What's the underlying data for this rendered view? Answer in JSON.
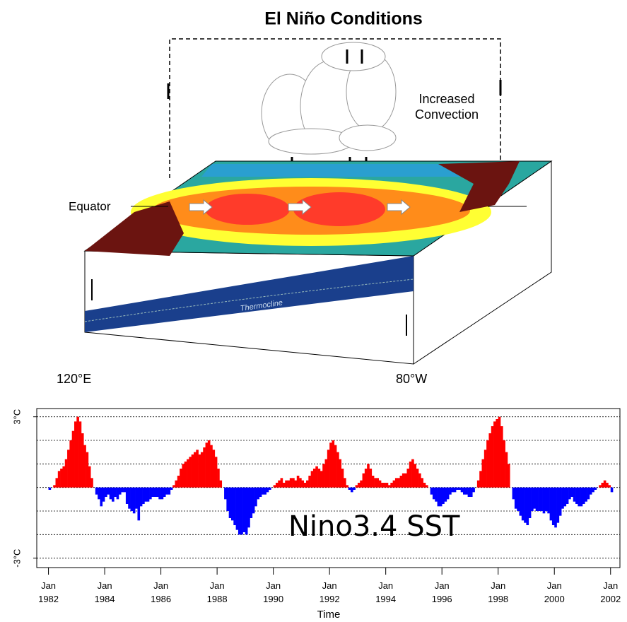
{
  "diagram": {
    "title": "El Niño Conditions",
    "convection": [
      "Increased",
      "Convection"
    ],
    "equator": "Equator",
    "thermocline": "Thermocline",
    "west": "120°E",
    "east": "80°W"
  },
  "chart_data": {
    "type": "bar",
    "title": "Nino3.4 SST",
    "x_label": "Time",
    "positive_color": "#ff0000",
    "negative_color": "#0000ff",
    "xlim": [
      "1981-08",
      "2002-05"
    ],
    "xticks": [
      {
        "value": "1982-01",
        "label": "Jan 1982"
      },
      {
        "value": "1984-01",
        "label": "Jan 1984"
      },
      {
        "value": "1986-01",
        "label": "Jan 1986"
      },
      {
        "value": "1988-01",
        "label": "Jan 1988"
      },
      {
        "value": "1990-01",
        "label": "Jan 1990"
      },
      {
        "value": "1992-01",
        "label": "Jan 1992"
      },
      {
        "value": "1994-01",
        "label": "Jan 1994"
      },
      {
        "value": "1996-01",
        "label": "Jan 1996"
      },
      {
        "value": "1998-01",
        "label": "Jan 1998"
      },
      {
        "value": "2000-01",
        "label": "Jan 2000"
      },
      {
        "value": "2002-01",
        "label": "Jan 2002"
      }
    ],
    "ylim": [
      -3.4,
      3.35
    ],
    "yticks": [
      {
        "value": 3,
        "label": "3°C"
      },
      {
        "value": -3,
        "label": "-3°C"
      }
    ],
    "ygrid": [
      -3,
      -2,
      -1,
      0,
      1,
      2,
      3
    ],
    "x": [
      "1982-01",
      "1982-02",
      "1982-03",
      "1982-04",
      "1982-05",
      "1982-06",
      "1982-07",
      "1982-08",
      "1982-09",
      "1982-10",
      "1982-11",
      "1982-12",
      "1983-01",
      "1983-02",
      "1983-03",
      "1983-04",
      "1983-05",
      "1983-06",
      "1983-07",
      "1983-08",
      "1983-09",
      "1983-10",
      "1983-11",
      "1983-12",
      "1984-01",
      "1984-02",
      "1984-03",
      "1984-04",
      "1984-05",
      "1984-06",
      "1984-07",
      "1984-08",
      "1984-09",
      "1984-10",
      "1984-11",
      "1984-12",
      "1985-01",
      "1985-02",
      "1985-03",
      "1985-04",
      "1985-05",
      "1985-06",
      "1985-07",
      "1985-08",
      "1985-09",
      "1985-10",
      "1985-11",
      "1985-12",
      "1986-01",
      "1986-02",
      "1986-03",
      "1986-04",
      "1986-05",
      "1986-06",
      "1986-07",
      "1986-08",
      "1986-09",
      "1986-10",
      "1986-11",
      "1986-12",
      "1987-01",
      "1987-02",
      "1987-03",
      "1987-04",
      "1987-05",
      "1987-06",
      "1987-07",
      "1987-08",
      "1987-09",
      "1987-10",
      "1987-11",
      "1987-12",
      "1988-01",
      "1988-02",
      "1988-03",
      "1988-04",
      "1988-05",
      "1988-06",
      "1988-07",
      "1988-08",
      "1988-09",
      "1988-10",
      "1988-11",
      "1988-12",
      "1989-01",
      "1989-02",
      "1989-03",
      "1989-04",
      "1989-05",
      "1989-06",
      "1989-07",
      "1989-08",
      "1989-09",
      "1989-10",
      "1989-11",
      "1989-12",
      "1990-01",
      "1990-02",
      "1990-03",
      "1990-04",
      "1990-05",
      "1990-06",
      "1990-07",
      "1990-08",
      "1990-09",
      "1990-10",
      "1990-11",
      "1990-12",
      "1991-01",
      "1991-02",
      "1991-03",
      "1991-04",
      "1991-05",
      "1991-06",
      "1991-07",
      "1991-08",
      "1991-09",
      "1991-10",
      "1991-11",
      "1991-12",
      "1992-01",
      "1992-02",
      "1992-03",
      "1992-04",
      "1992-05",
      "1992-06",
      "1992-07",
      "1992-08",
      "1992-09",
      "1992-10",
      "1992-11",
      "1992-12",
      "1993-01",
      "1993-02",
      "1993-03",
      "1993-04",
      "1993-05",
      "1993-06",
      "1993-07",
      "1993-08",
      "1993-09",
      "1993-10",
      "1993-11",
      "1993-12",
      "1994-01",
      "1994-02",
      "1994-03",
      "1994-04",
      "1994-05",
      "1994-06",
      "1994-07",
      "1994-08",
      "1994-09",
      "1994-10",
      "1994-11",
      "1994-12",
      "1995-01",
      "1995-02",
      "1995-03",
      "1995-04",
      "1995-05",
      "1995-06",
      "1995-07",
      "1995-08",
      "1995-09",
      "1995-10",
      "1995-11",
      "1995-12",
      "1996-01",
      "1996-02",
      "1996-03",
      "1996-04",
      "1996-05",
      "1996-06",
      "1996-07",
      "1996-08",
      "1996-09",
      "1996-10",
      "1996-11",
      "1996-12",
      "1997-01",
      "1997-02",
      "1997-03",
      "1997-04",
      "1997-05",
      "1997-06",
      "1997-07",
      "1997-08",
      "1997-09",
      "1997-10",
      "1997-11",
      "1997-12",
      "1998-01",
      "1998-02",
      "1998-03",
      "1998-04",
      "1998-05",
      "1998-06",
      "1998-07",
      "1998-08",
      "1998-09",
      "1998-10",
      "1998-11",
      "1998-12",
      "1999-01",
      "1999-02",
      "1999-03",
      "1999-04",
      "1999-05",
      "1999-06",
      "1999-07",
      "1999-08",
      "1999-09",
      "1999-10",
      "1999-11",
      "1999-12",
      "2000-01",
      "2000-02",
      "2000-03",
      "2000-04",
      "2000-05",
      "2000-06",
      "2000-07",
      "2000-08",
      "2000-09",
      "2000-10",
      "2000-11",
      "2000-12",
      "2001-01",
      "2001-02",
      "2001-03",
      "2001-04",
      "2001-05",
      "2001-06",
      "2001-07",
      "2001-08",
      "2001-09",
      "2001-10",
      "2001-11",
      "2001-12",
      "2002-01"
    ],
    "values": [
      -0.1,
      0.0,
      0.1,
      0.4,
      0.7,
      0.8,
      0.9,
      1.2,
      1.6,
      2.0,
      2.4,
      2.8,
      3.0,
      2.8,
      2.3,
      1.8,
      1.5,
      0.9,
      0.4,
      0.0,
      -0.3,
      -0.5,
      -0.8,
      -0.6,
      -0.4,
      -0.3,
      -0.5,
      -0.6,
      -0.4,
      -0.5,
      -0.3,
      -0.2,
      -0.2,
      -0.7,
      -0.9,
      -1.0,
      -1.1,
      -0.9,
      -1.4,
      -0.8,
      -0.7,
      -0.6,
      -0.6,
      -0.5,
      -0.4,
      -0.4,
      -0.4,
      -0.5,
      -0.5,
      -0.4,
      -0.3,
      -0.3,
      -0.1,
      0.1,
      0.3,
      0.5,
      0.8,
      1.0,
      1.1,
      1.2,
      1.3,
      1.4,
      1.5,
      1.6,
      1.4,
      1.5,
      1.7,
      1.9,
      2.0,
      1.8,
      1.6,
      1.3,
      0.8,
      0.3,
      0.0,
      -0.5,
      -1.0,
      -1.3,
      -1.4,
      -1.6,
      -1.8,
      -2.0,
      -2.0,
      -1.9,
      -2.0,
      -1.7,
      -1.3,
      -1.1,
      -0.8,
      -0.5,
      -0.4,
      -0.3,
      -0.3,
      -0.2,
      -0.1,
      0.0,
      0.1,
      0.2,
      0.3,
      0.4,
      0.2,
      0.3,
      0.3,
      0.4,
      0.4,
      0.3,
      0.5,
      0.4,
      0.3,
      0.2,
      0.3,
      0.5,
      0.7,
      0.8,
      0.9,
      0.8,
      0.7,
      1.0,
      1.2,
      1.6,
      1.9,
      2.0,
      1.8,
      1.5,
      1.2,
      0.8,
      0.4,
      0.1,
      -0.1,
      -0.2,
      -0.1,
      0.1,
      0.2,
      0.3,
      0.6,
      0.8,
      1.0,
      0.8,
      0.5,
      0.4,
      0.4,
      0.3,
      0.2,
      0.2,
      0.2,
      0.1,
      0.2,
      0.3,
      0.4,
      0.4,
      0.5,
      0.6,
      0.6,
      0.8,
      1.1,
      1.2,
      1.0,
      0.8,
      0.6,
      0.4,
      0.2,
      0.1,
      0.0,
      -0.3,
      -0.5,
      -0.6,
      -0.8,
      -0.8,
      -0.7,
      -0.6,
      -0.5,
      -0.3,
      -0.2,
      -0.2,
      -0.1,
      -0.1,
      -0.2,
      -0.3,
      -0.3,
      -0.4,
      -0.4,
      -0.2,
      0.0,
      0.3,
      0.7,
      1.2,
      1.6,
      2.0,
      2.3,
      2.6,
      2.8,
      2.9,
      3.0,
      2.6,
      2.0,
      1.5,
      1.0,
      0.0,
      -0.5,
      -0.9,
      -1.0,
      -1.2,
      -1.4,
      -1.5,
      -1.6,
      -1.3,
      -1.0,
      -0.9,
      -1.0,
      -1.0,
      -1.0,
      -1.1,
      -1.0,
      -1.1,
      -1.4,
      -1.6,
      -1.7,
      -1.5,
      -1.2,
      -0.9,
      -0.8,
      -0.7,
      -0.5,
      -0.4,
      -0.6,
      -0.7,
      -0.8,
      -0.8,
      -0.7,
      -0.6,
      -0.5,
      -0.3,
      -0.2,
      -0.1,
      0.0,
      0.1,
      0.2,
      0.3,
      0.2,
      0.1,
      -0.2
    ]
  }
}
